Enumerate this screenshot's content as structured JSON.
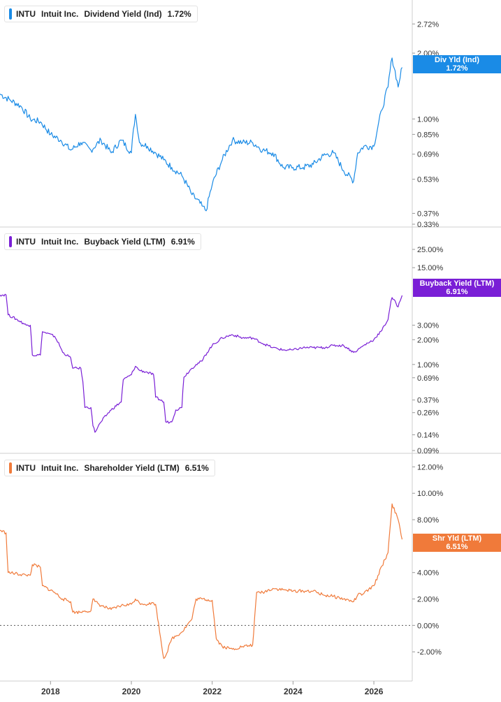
{
  "x_axis": {
    "ticks": [
      "2018",
      "2020",
      "2022",
      "2024",
      "2026"
    ]
  },
  "chart_data": [
    {
      "type": "line",
      "ticker": "INTU",
      "company": "Intuit Inc.",
      "metric": "Dividend Yield (Ind)",
      "last_value": "1.72%",
      "tag_line1": "Div Yld (Ind)",
      "tag_line2": "1.72%",
      "color": "#1a8be6",
      "scale": "log",
      "y_ticks": [
        {
          "label": "2.72%",
          "value": 2.72
        },
        {
          "label": "2.00%",
          "value": 2.0
        },
        {
          "label": "1.00%",
          "value": 1.0
        },
        {
          "label": "0.85%",
          "value": 0.85
        },
        {
          "label": "0.69%",
          "value": 0.69
        },
        {
          "label": "0.53%",
          "value": 0.53
        },
        {
          "label": "0.37%",
          "value": 0.37
        },
        {
          "label": "0.33%",
          "value": 0.33
        }
      ],
      "ylim": [
        0.33,
        3.3
      ],
      "x": [
        2016.75,
        2017.0,
        2017.25,
        2017.5,
        2017.75,
        2018.0,
        2018.25,
        2018.5,
        2018.75,
        2019.0,
        2019.25,
        2019.5,
        2019.75,
        2020.0,
        2020.1,
        2020.2,
        2020.4,
        2020.6,
        2020.8,
        2021.0,
        2021.25,
        2021.5,
        2021.75,
        2021.85,
        2022.0,
        2022.25,
        2022.5,
        2022.75,
        2023.0,
        2023.25,
        2023.5,
        2023.75,
        2024.0,
        2024.25,
        2024.5,
        2024.75,
        2025.0,
        2025.25,
        2025.5,
        2025.6,
        2025.75,
        2026.0,
        2026.2,
        2026.35,
        2026.45,
        2026.6,
        2026.7
      ],
      "y": [
        1.3,
        1.22,
        1.15,
        1.0,
        0.97,
        0.85,
        0.8,
        0.72,
        0.78,
        0.72,
        0.8,
        0.7,
        0.8,
        0.7,
        1.05,
        0.78,
        0.75,
        0.7,
        0.65,
        0.6,
        0.55,
        0.45,
        0.4,
        0.38,
        0.5,
        0.65,
        0.8,
        0.78,
        0.78,
        0.72,
        0.7,
        0.6,
        0.6,
        0.6,
        0.62,
        0.68,
        0.7,
        0.58,
        0.52,
        0.7,
        0.75,
        0.75,
        1.1,
        1.4,
        1.9,
        1.4,
        1.72
      ]
    },
    {
      "type": "line",
      "ticker": "INTU",
      "company": "Intuit Inc.",
      "metric": "Buyback Yield (LTM)",
      "last_value": "6.91%",
      "tag_line1": "Buyback Yield (LTM)",
      "tag_line2": "6.91%",
      "color": "#7a1fd6",
      "scale": "log",
      "y_ticks": [
        {
          "label": "25.00%",
          "value": 25
        },
        {
          "label": "15.00%",
          "value": 15
        },
        {
          "label": "3.00%",
          "value": 3
        },
        {
          "label": "2.00%",
          "value": 2
        },
        {
          "label": "1.00%",
          "value": 1
        },
        {
          "label": "0.69%",
          "value": 0.69
        },
        {
          "label": "0.37%",
          "value": 0.37
        },
        {
          "label": "0.26%",
          "value": 0.26
        },
        {
          "label": "0.14%",
          "value": 0.14
        },
        {
          "label": "0.09%",
          "value": 0.09
        }
      ],
      "ylim": [
        0.09,
        40
      ],
      "x": [
        2016.75,
        2016.9,
        2016.95,
        2017.4,
        2017.5,
        2017.55,
        2017.75,
        2017.8,
        2018.1,
        2018.3,
        2018.5,
        2018.55,
        2018.75,
        2018.85,
        2019.0,
        2019.05,
        2019.1,
        2019.25,
        2019.5,
        2019.75,
        2019.8,
        2020.0,
        2020.1,
        2020.2,
        2020.4,
        2020.55,
        2020.6,
        2020.8,
        2020.85,
        2021.0,
        2021.1,
        2021.25,
        2021.3,
        2021.5,
        2021.6,
        2021.75,
        2022.0,
        2022.25,
        2022.5,
        2022.75,
        2023.0,
        2023.25,
        2023.5,
        2023.75,
        2024.0,
        2024.25,
        2024.5,
        2024.75,
        2025.0,
        2025.25,
        2025.5,
        2025.6,
        2025.75,
        2026.0,
        2026.2,
        2026.35,
        2026.45,
        2026.6,
        2026.7
      ],
      "y": [
        7.0,
        7.0,
        4.0,
        3.0,
        3.0,
        1.3,
        1.3,
        2.5,
        2.2,
        1.4,
        1.2,
        0.9,
        0.9,
        0.3,
        0.3,
        0.18,
        0.15,
        0.2,
        0.28,
        0.35,
        0.65,
        0.75,
        0.95,
        0.85,
        0.8,
        0.75,
        0.4,
        0.35,
        0.2,
        0.2,
        0.28,
        0.3,
        0.7,
        0.9,
        1.0,
        1.1,
        1.7,
        2.1,
        2.3,
        2.1,
        2.1,
        1.8,
        1.6,
        1.5,
        1.5,
        1.6,
        1.6,
        1.6,
        1.7,
        1.7,
        1.4,
        1.5,
        1.7,
        2.0,
        2.6,
        3.5,
        6.5,
        5.0,
        6.91
      ]
    },
    {
      "type": "line",
      "ticker": "INTU",
      "company": "Intuit Inc.",
      "metric": "Shareholder Yield (LTM)",
      "last_value": "6.51%",
      "tag_line1": "Shr Yld (LTM)",
      "tag_line2": "6.51%",
      "color": "#f07a3a",
      "scale": "linear",
      "zero_line": true,
      "y_ticks": [
        {
          "label": "12.00%",
          "value": 12
        },
        {
          "label": "10.00%",
          "value": 10
        },
        {
          "label": "8.00%",
          "value": 8
        },
        {
          "label": "4.00%",
          "value": 4
        },
        {
          "label": "2.00%",
          "value": 2
        },
        {
          "label": "0.00%",
          "value": 0
        },
        {
          "label": "-2.00%",
          "value": -2
        }
      ],
      "ylim": [
        -4,
        12.6
      ],
      "x": [
        2016.75,
        2016.9,
        2016.95,
        2017.4,
        2017.5,
        2017.55,
        2017.75,
        2017.8,
        2018.1,
        2018.3,
        2018.5,
        2018.55,
        2018.75,
        2018.85,
        2019.0,
        2019.05,
        2019.1,
        2019.25,
        2019.5,
        2019.75,
        2020.0,
        2020.1,
        2020.2,
        2020.4,
        2020.55,
        2020.6,
        2020.8,
        2020.85,
        2021.0,
        2021.25,
        2021.5,
        2021.6,
        2021.75,
        2022.0,
        2022.1,
        2022.25,
        2022.5,
        2022.75,
        2023.0,
        2023.1,
        2023.25,
        2023.5,
        2023.75,
        2024.0,
        2024.25,
        2024.5,
        2024.75,
        2025.0,
        2025.25,
        2025.5,
        2025.6,
        2025.75,
        2026.0,
        2026.2,
        2026.35,
        2026.45,
        2026.6,
        2026.7
      ],
      "y": [
        7.2,
        7.0,
        4.0,
        3.8,
        3.8,
        4.6,
        4.4,
        3.0,
        2.5,
        2.0,
        1.8,
        1.0,
        1.0,
        1.1,
        1.1,
        2.0,
        1.8,
        1.5,
        1.2,
        1.5,
        1.6,
        2.0,
        1.7,
        1.6,
        1.7,
        1.6,
        -2.5,
        -2.3,
        -1.0,
        -0.5,
        0.5,
        2.0,
        2.0,
        1.9,
        -1.0,
        -1.6,
        -1.8,
        -1.6,
        -1.5,
        2.5,
        2.5,
        2.8,
        2.7,
        2.6,
        2.6,
        2.6,
        2.3,
        2.2,
        2.0,
        1.8,
        2.3,
        2.4,
        3.0,
        4.5,
        5.5,
        9.2,
        8.0,
        6.51
      ]
    }
  ]
}
